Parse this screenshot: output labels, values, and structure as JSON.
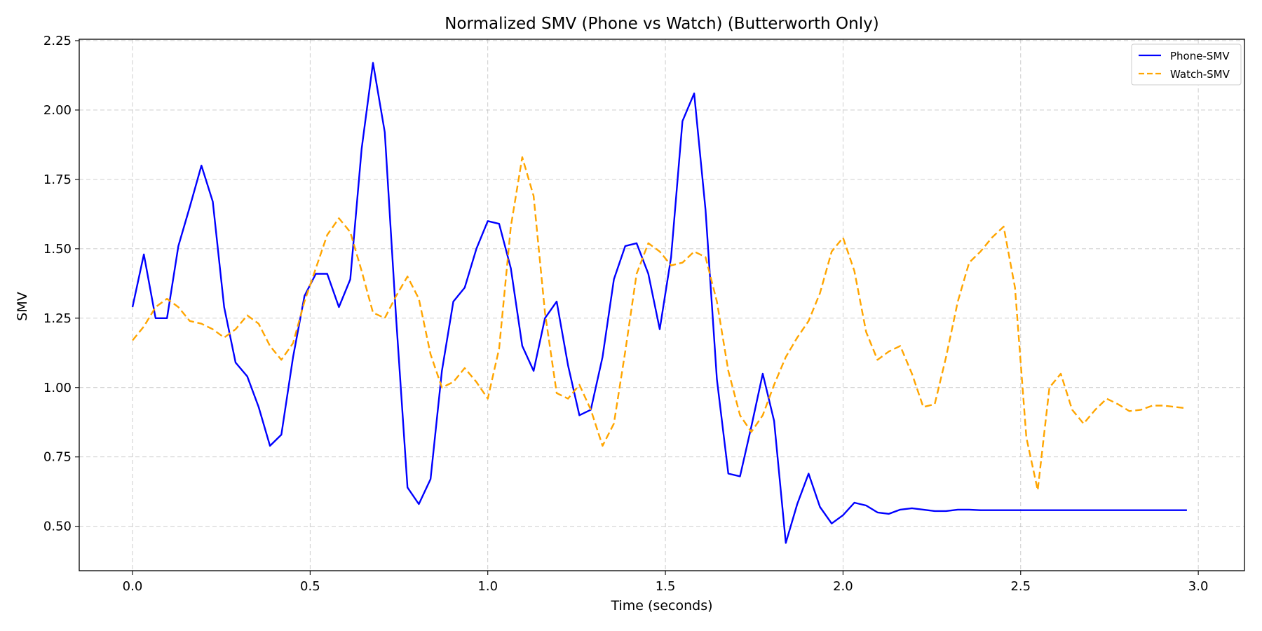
{
  "chart_data": {
    "type": "line",
    "title": "Normalized SMV (Phone vs Watch) (Butterworth Only)",
    "xlabel": "Time (seconds)",
    "ylabel": "SMV",
    "xlim": [
      -0.15,
      3.13
    ],
    "ylim": [
      0.34,
      2.255
    ],
    "xticks": [
      0.0,
      0.5,
      1.0,
      1.5,
      2.0,
      2.5,
      3.0
    ],
    "xtick_labels": [
      "0.0",
      "0.5",
      "1.0",
      "1.5",
      "2.0",
      "2.5",
      "3.0"
    ],
    "yticks": [
      0.5,
      0.75,
      1.0,
      1.25,
      1.5,
      1.75,
      2.0,
      2.25
    ],
    "ytick_labels": [
      "0.50",
      "0.75",
      "1.00",
      "1.25",
      "1.50",
      "1.75",
      "2.00",
      "2.25"
    ],
    "grid": true,
    "legend_position": "top-right",
    "x": [
      0.0,
      0.032,
      0.065,
      0.097,
      0.129,
      0.161,
      0.194,
      0.226,
      0.258,
      0.29,
      0.323,
      0.355,
      0.387,
      0.419,
      0.452,
      0.484,
      0.516,
      0.548,
      0.581,
      0.613,
      0.645,
      0.677,
      0.71,
      0.742,
      0.774,
      0.806,
      0.839,
      0.871,
      0.903,
      0.935,
      0.968,
      1.0,
      1.032,
      1.065,
      1.097,
      1.129,
      1.161,
      1.194,
      1.226,
      1.258,
      1.29,
      1.323,
      1.355,
      1.387,
      1.419,
      1.452,
      1.484,
      1.516,
      1.548,
      1.581,
      1.613,
      1.645,
      1.677,
      1.71,
      1.742,
      1.774,
      1.806,
      1.839,
      1.871,
      1.903,
      1.935,
      1.968,
      2.0,
      2.032,
      2.065,
      2.097,
      2.129,
      2.161,
      2.194,
      2.226,
      2.258,
      2.29,
      2.323,
      2.355,
      2.387,
      2.419,
      2.452,
      2.484,
      2.516,
      2.548,
      2.581,
      2.613,
      2.645,
      2.677,
      2.71,
      2.742,
      2.774,
      2.806,
      2.839,
      2.871,
      2.903,
      2.935,
      2.968
    ],
    "series": [
      {
        "name": "Phone-SMV",
        "color": "#0000ff",
        "style": "solid",
        "values": [
          1.29,
          1.48,
          1.25,
          1.25,
          1.51,
          1.65,
          1.8,
          1.67,
          1.29,
          1.09,
          1.04,
          0.93,
          0.79,
          0.83,
          1.11,
          1.33,
          1.41,
          1.41,
          1.29,
          1.39,
          1.86,
          2.17,
          1.92,
          1.25,
          0.64,
          0.58,
          0.67,
          1.06,
          1.31,
          1.36,
          1.5,
          1.6,
          1.59,
          1.43,
          1.15,
          1.06,
          1.25,
          1.31,
          1.08,
          0.9,
          0.92,
          1.11,
          1.39,
          1.51,
          1.52,
          1.41,
          1.21,
          1.47,
          1.96,
          2.06,
          1.64,
          1.03,
          0.69,
          0.68,
          0.86,
          1.05,
          0.88,
          0.44,
          0.58,
          0.69,
          0.57,
          0.51,
          0.54,
          0.585,
          0.575,
          0.55,
          0.545,
          0.56,
          0.565,
          0.56,
          0.555,
          0.555,
          0.56,
          0.56,
          0.558,
          0.558,
          0.558,
          0.558,
          0.558,
          0.558,
          0.558,
          0.558,
          0.558,
          0.558,
          0.558,
          0.558,
          0.558,
          0.558,
          0.558,
          0.558,
          0.558,
          0.558,
          0.558
        ]
      },
      {
        "name": "Watch-SMV",
        "color": "#ffa500",
        "style": "dashed",
        "values": [
          1.17,
          1.22,
          1.29,
          1.32,
          1.29,
          1.24,
          1.23,
          1.21,
          1.18,
          1.21,
          1.26,
          1.23,
          1.15,
          1.1,
          1.16,
          1.31,
          1.43,
          1.55,
          1.61,
          1.56,
          1.42,
          1.27,
          1.25,
          1.33,
          1.4,
          1.32,
          1.12,
          1.0,
          1.02,
          1.07,
          1.02,
          0.96,
          1.14,
          1.58,
          1.83,
          1.69,
          1.27,
          0.98,
          0.96,
          1.01,
          0.92,
          0.79,
          0.87,
          1.13,
          1.41,
          1.52,
          1.49,
          1.44,
          1.45,
          1.49,
          1.47,
          1.31,
          1.06,
          0.9,
          0.84,
          0.9,
          1.01,
          1.11,
          1.18,
          1.24,
          1.34,
          1.49,
          1.54,
          1.42,
          1.2,
          1.1,
          1.13,
          1.15,
          1.05,
          0.93,
          0.94,
          1.11,
          1.31,
          1.45,
          1.49,
          1.54,
          1.58,
          1.36,
          0.82,
          0.63,
          1.0,
          1.05,
          0.92,
          0.87,
          0.92,
          0.96,
          0.94,
          0.915,
          0.92,
          0.935,
          0.935,
          0.93,
          0.925
        ]
      }
    ]
  }
}
